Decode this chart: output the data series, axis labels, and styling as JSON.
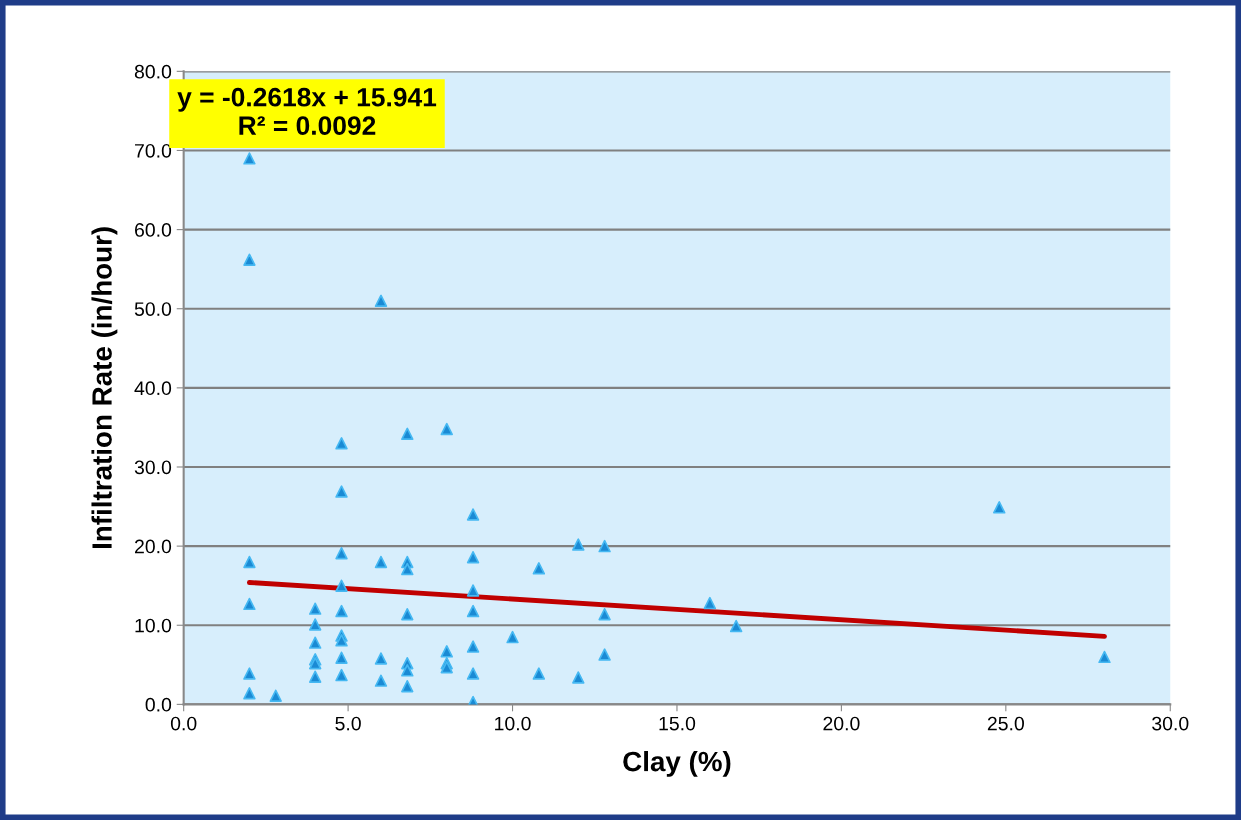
{
  "chart_data": {
    "type": "scatter",
    "xlabel": "Clay (%)",
    "ylabel": "Infiltration Rate (in/hour)",
    "annotations": [
      "y = -0.2618x + 15.941\nR² = 0.0092"
    ],
    "xlim": [
      0,
      30
    ],
    "ylim": [
      0,
      80
    ],
    "xticks": [
      {
        "value": 0,
        "label": "0.0"
      },
      {
        "value": 5,
        "label": "5.0"
      },
      {
        "value": 10,
        "label": "10.0"
      },
      {
        "value": 15,
        "label": "15.0"
      },
      {
        "value": 20,
        "label": "20.0"
      },
      {
        "value": 25,
        "label": "25.0"
      },
      {
        "value": 30,
        "label": "30.0"
      }
    ],
    "yticks": [
      {
        "value": 0,
        "label": "0.0"
      },
      {
        "value": 10,
        "label": "10.0"
      },
      {
        "value": 20,
        "label": "20.0"
      },
      {
        "value": 30,
        "label": "30.0"
      },
      {
        "value": 40,
        "label": "40.0"
      },
      {
        "value": 50,
        "label": "50.0"
      },
      {
        "value": 60,
        "label": "60.0"
      },
      {
        "value": 70,
        "label": "70.0"
      },
      {
        "value": 80,
        "label": "80.0"
      }
    ],
    "grid": "y",
    "legend": false,
    "marker": "triangle",
    "series": [
      {
        "color": "#1a8ad4",
        "x": [
          2,
          2,
          2,
          2,
          2,
          2,
          2.8,
          4,
          4,
          4,
          4,
          4,
          4,
          4.8,
          4.8,
          4.8,
          4.8,
          4.8,
          4.8,
          4.8,
          4.8,
          4.8,
          6,
          6,
          6,
          6,
          6.8,
          6.8,
          6.8,
          6.8,
          6.8,
          6.8,
          6.8,
          8,
          8,
          8,
          8,
          8.8,
          8.8,
          8.8,
          8.8,
          8.8,
          8.8,
          8.8,
          10,
          10.8,
          10.8,
          12,
          12,
          12.8,
          12.8,
          12.8,
          16,
          16.8,
          24.8,
          28
        ],
        "values": [
          69,
          56.2,
          18.0,
          12.7,
          3.9,
          1.4,
          1.1,
          12.1,
          10.1,
          7.8,
          5.7,
          5.2,
          3.5,
          33.0,
          26.9,
          19.1,
          15.0,
          11.8,
          8.7,
          8.1,
          5.9,
          3.7,
          51.0,
          18.0,
          5.8,
          3.0,
          34.2,
          18.0,
          17.1,
          11.4,
          5.2,
          4.3,
          2.3,
          34.8,
          6.7,
          5.2,
          4.7,
          24.0,
          18.6,
          14.4,
          11.8,
          7.3,
          3.9,
          0.3,
          8.5,
          17.2,
          3.9,
          20.2,
          3.4,
          20.0,
          11.4,
          6.3,
          12.8,
          9.9,
          24.9,
          6.0
        ]
      },
      {
        "type": "line",
        "color": "#c00000",
        "x": [
          2,
          28
        ],
        "values": [
          15.4,
          8.6
        ],
        "marker": "none"
      }
    ]
  }
}
